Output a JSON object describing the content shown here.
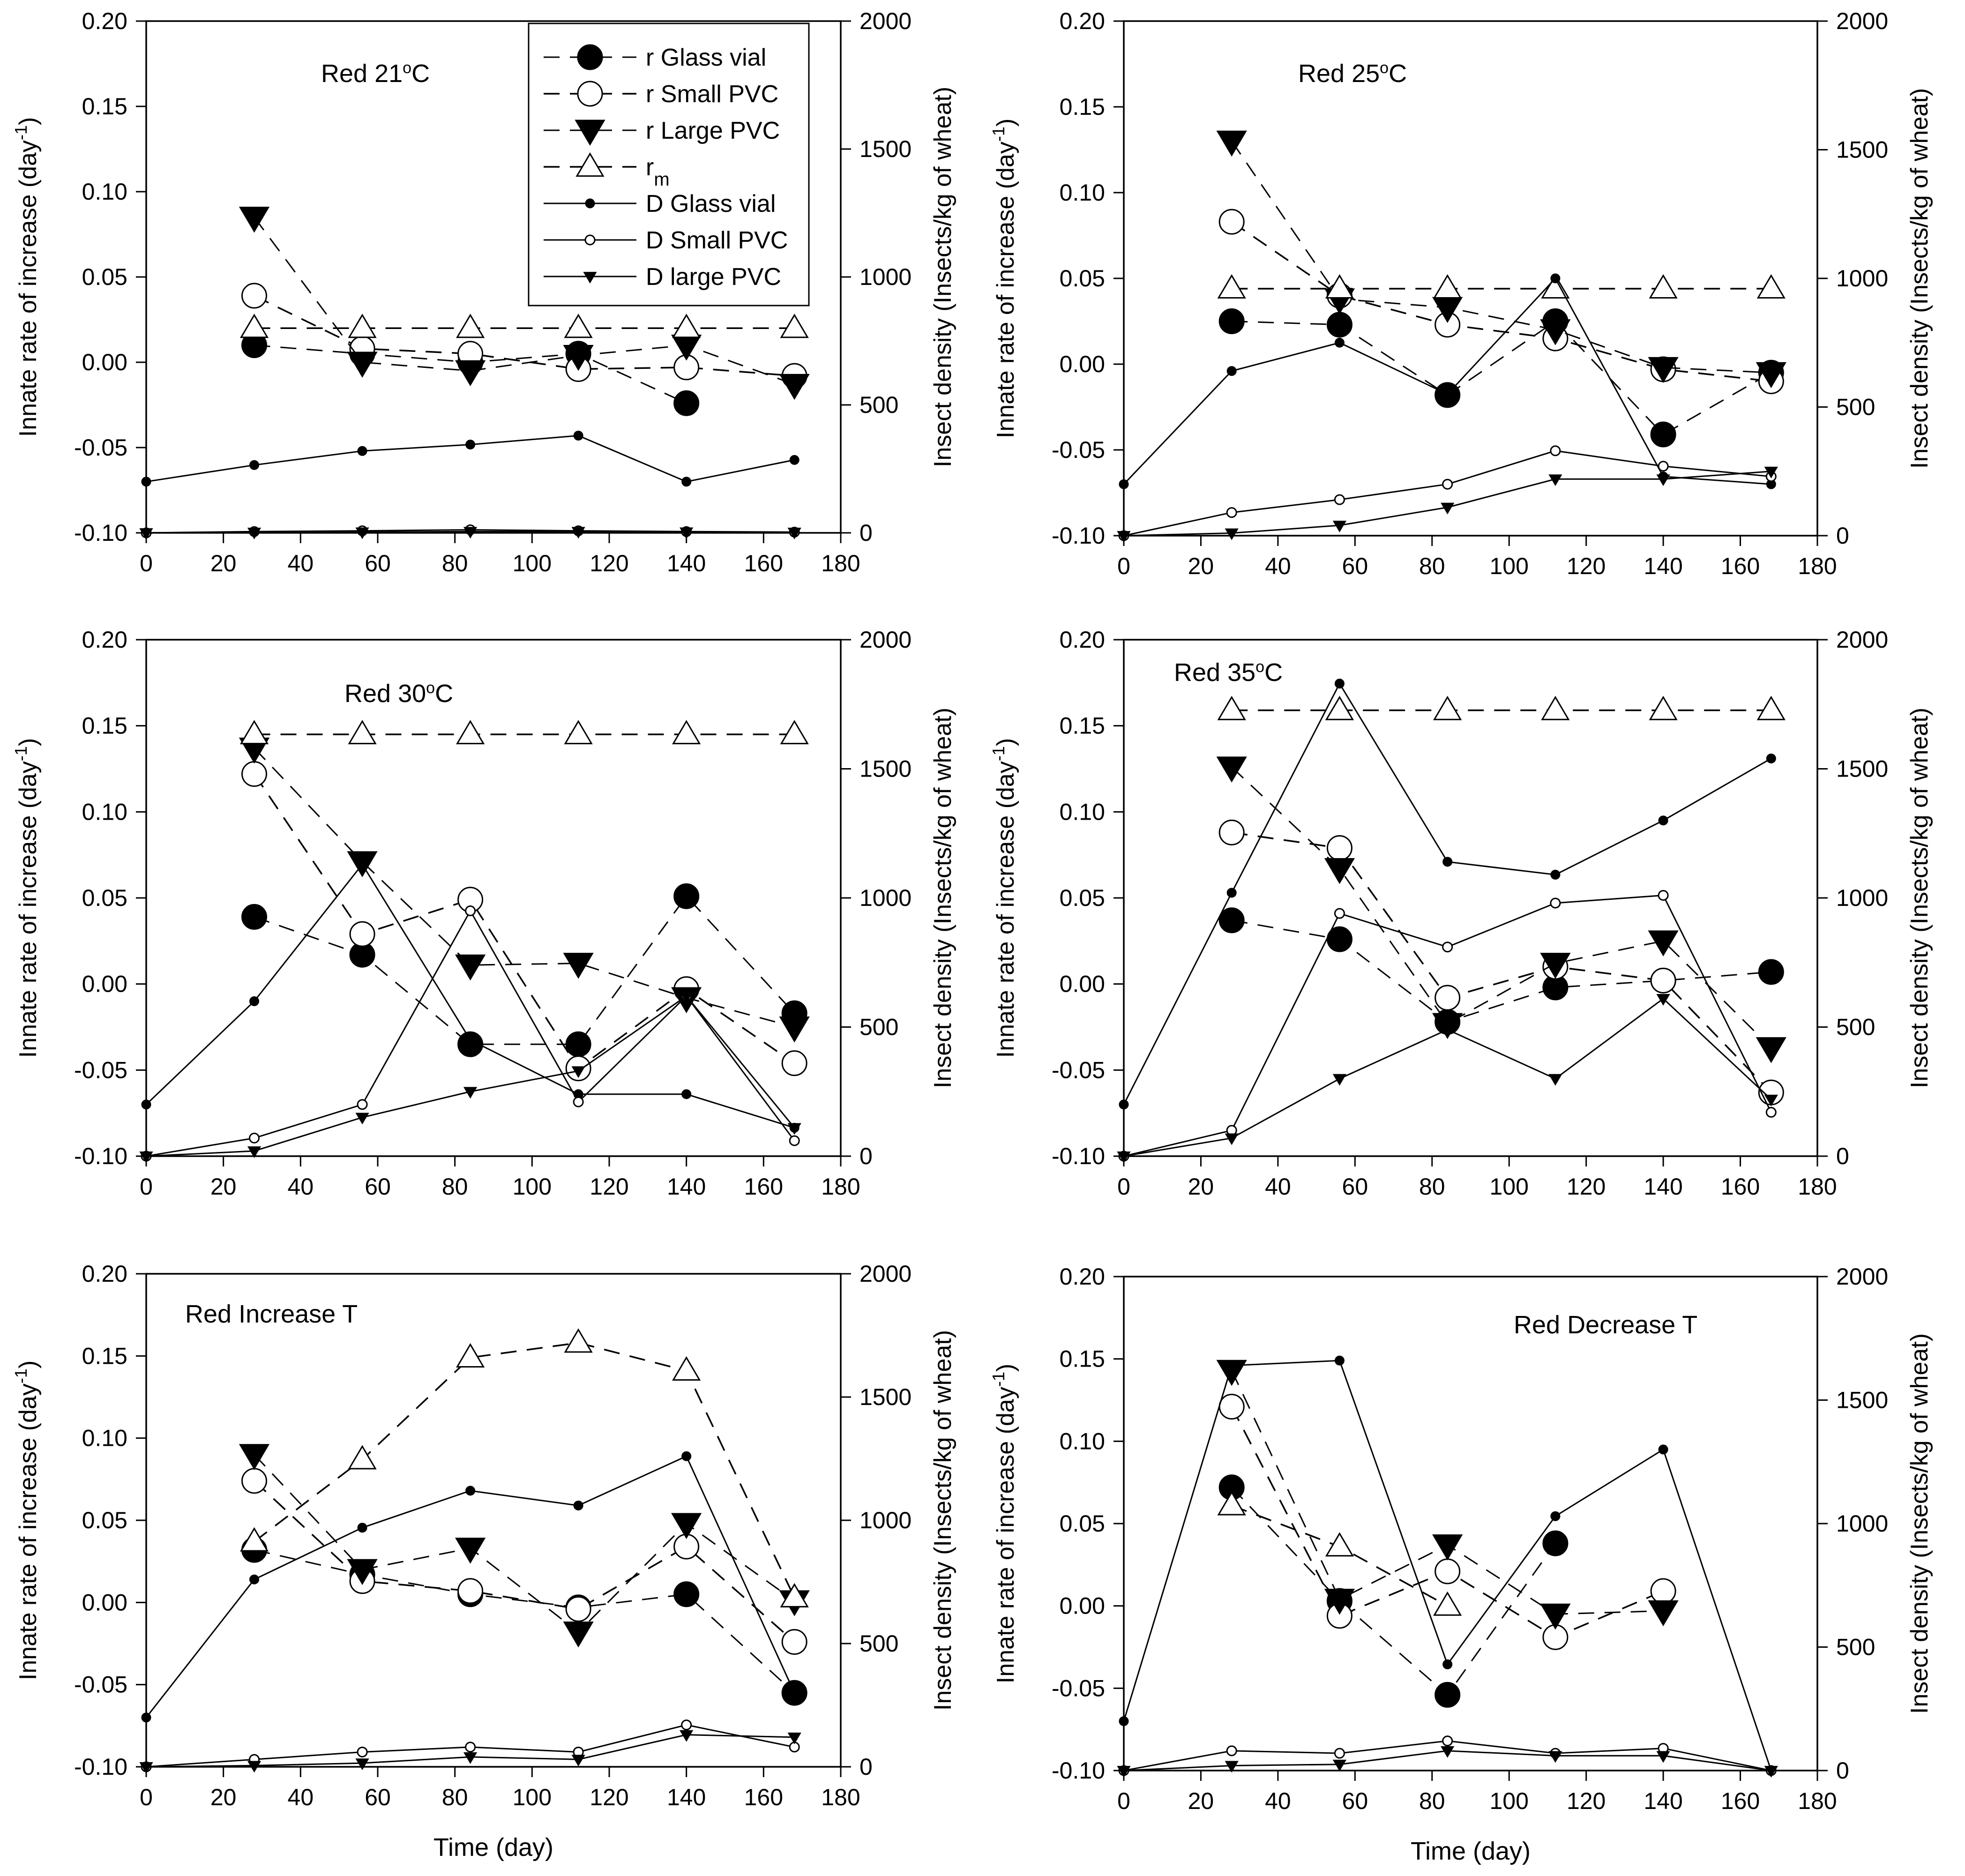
{
  "figure": {
    "x_axis_label": "Time (day)",
    "left_axis_label": "Innate rate of increase (day",
    "left_axis_sup": "-1",
    "left_axis_close": ")",
    "right_axis_label": "Insect density (Insects/kg of wheat)"
  },
  "legend": {
    "entries": [
      {
        "key": "rGlass",
        "label": "r Glass vial"
      },
      {
        "key": "rSmall",
        "label": "r Small PVC"
      },
      {
        "key": "rLarge",
        "label": "r Large PVC"
      },
      {
        "key": "rm",
        "label": "r",
        "sub": "m"
      },
      {
        "key": "dGlass",
        "label": "D Glass vial"
      },
      {
        "key": "dSmall",
        "label": "D Small PVC"
      },
      {
        "key": "dLarge",
        "label": "D large PVC"
      }
    ]
  },
  "chart_data": [
    {
      "type": "line",
      "title": "Red 21",
      "title_degree": "o",
      "title_unit": "C",
      "x": [
        0,
        28,
        56,
        84,
        112,
        140,
        168
      ],
      "xlim": [
        0,
        180
      ],
      "xticks": [
        0,
        20,
        40,
        60,
        80,
        100,
        120,
        140,
        160,
        180
      ],
      "ylim": [
        -0.1,
        0.2
      ],
      "yticks": [
        "-0.10",
        "-0.05",
        "0.00",
        "0.05",
        "0.10",
        "0.15",
        "0.20"
      ],
      "y2lim": [
        0,
        2000
      ],
      "y2ticks": [
        0,
        500,
        1000,
        1500,
        2000
      ],
      "series": [
        {
          "key": "rGlass",
          "axis": "left",
          "values": [
            null,
            0.01,
            0.005,
            0.0,
            0.005,
            -0.024,
            null
          ]
        },
        {
          "key": "rSmall",
          "axis": "left",
          "values": [
            null,
            0.039,
            0.008,
            0.005,
            -0.004,
            -0.003,
            -0.008
          ]
        },
        {
          "key": "rLarge",
          "axis": "left",
          "values": [
            null,
            0.085,
            0.0,
            -0.005,
            0.004,
            0.01,
            -0.013
          ]
        },
        {
          "key": "rm",
          "axis": "left",
          "values": [
            null,
            0.02,
            0.02,
            0.02,
            0.02,
            0.02,
            0.02
          ]
        },
        {
          "key": "dGlass",
          "axis": "right",
          "values": [
            200,
            265,
            320,
            345,
            380,
            200,
            285
          ]
        },
        {
          "key": "dSmall",
          "axis": "right",
          "values": [
            0,
            5,
            8,
            12,
            8,
            5,
            3
          ]
        },
        {
          "key": "dLarge",
          "axis": "right",
          "values": [
            0,
            2,
            3,
            5,
            5,
            3,
            2
          ]
        }
      ]
    },
    {
      "type": "line",
      "title": "Red 25",
      "title_degree": "o",
      "title_unit": "C",
      "x": [
        0,
        28,
        56,
        84,
        112,
        140,
        168
      ],
      "xlim": [
        0,
        180
      ],
      "xticks": [
        0,
        20,
        40,
        60,
        80,
        100,
        120,
        140,
        160,
        180
      ],
      "ylim": [
        -0.1,
        0.2
      ],
      "yticks": [
        "-0.10",
        "-0.05",
        "0.00",
        "0.05",
        "0.10",
        "0.15",
        "0.20"
      ],
      "y2lim": [
        0,
        2000
      ],
      "y2ticks": [
        0,
        500,
        1000,
        1500,
        2000
      ],
      "series": [
        {
          "key": "rGlass",
          "axis": "left",
          "values": [
            null,
            0.025,
            0.023,
            -0.018,
            0.025,
            -0.041,
            -0.005
          ]
        },
        {
          "key": "rSmall",
          "axis": "left",
          "values": [
            null,
            0.083,
            0.04,
            0.023,
            0.015,
            -0.003,
            -0.01
          ]
        },
        {
          "key": "rLarge",
          "axis": "left",
          "values": [
            null,
            0.13,
            0.038,
            0.033,
            0.02,
            -0.002,
            -0.005
          ]
        },
        {
          "key": "rm",
          "axis": "left",
          "values": [
            null,
            0.044,
            0.044,
            0.044,
            0.044,
            0.044,
            0.044
          ]
        },
        {
          "key": "dGlass",
          "axis": "right",
          "values": [
            200,
            640,
            750,
            550,
            1000,
            230,
            200
          ]
        },
        {
          "key": "dSmall",
          "axis": "right",
          "values": [
            0,
            90,
            140,
            200,
            330,
            270,
            230
          ]
        },
        {
          "key": "dLarge",
          "axis": "right",
          "values": [
            0,
            10,
            40,
            110,
            220,
            220,
            250
          ]
        }
      ]
    },
    {
      "type": "line",
      "title": "Red 30",
      "title_degree": "o",
      "title_unit": "C",
      "x": [
        0,
        28,
        56,
        84,
        112,
        140,
        168
      ],
      "xlim": [
        0,
        180
      ],
      "xticks": [
        0,
        20,
        40,
        60,
        80,
        100,
        120,
        140,
        160,
        180
      ],
      "ylim": [
        -0.1,
        0.2
      ],
      "yticks": [
        "-0.10",
        "-0.05",
        "0.00",
        "0.05",
        "0.10",
        "0.15",
        "0.20"
      ],
      "y2lim": [
        0,
        2000
      ],
      "y2ticks": [
        0,
        500,
        1000,
        1500,
        2000
      ],
      "series": [
        {
          "key": "rGlass",
          "axis": "left",
          "values": [
            null,
            0.039,
            0.017,
            -0.035,
            -0.035,
            0.051,
            -0.017
          ]
        },
        {
          "key": "rSmall",
          "axis": "left",
          "values": [
            null,
            0.122,
            0.029,
            0.049,
            -0.049,
            -0.003,
            -0.046
          ]
        },
        {
          "key": "rLarge",
          "axis": "left",
          "values": [
            null,
            0.137,
            0.071,
            0.011,
            0.012,
            -0.008,
            -0.025
          ]
        },
        {
          "key": "rm",
          "axis": "left",
          "values": [
            null,
            0.145,
            0.145,
            0.145,
            0.145,
            0.145,
            0.145
          ]
        },
        {
          "key": "dGlass",
          "axis": "right",
          "values": [
            200,
            600,
            1130,
            450,
            240,
            240,
            110
          ]
        },
        {
          "key": "dSmall",
          "axis": "right",
          "values": [
            0,
            70,
            200,
            950,
            210,
            620,
            60
          ]
        },
        {
          "key": "dLarge",
          "axis": "right",
          "values": [
            0,
            20,
            150,
            250,
            330,
            620,
            110
          ]
        }
      ]
    },
    {
      "type": "line",
      "title": "Red 35",
      "title_degree": "o",
      "title_unit": "C",
      "x": [
        0,
        28,
        56,
        84,
        112,
        140,
        168
      ],
      "xlim": [
        0,
        180
      ],
      "xticks": [
        0,
        20,
        40,
        60,
        80,
        100,
        120,
        140,
        160,
        180
      ],
      "ylim": [
        -0.1,
        0.2
      ],
      "yticks": [
        "-0.10",
        "-0.05",
        "0.00",
        "0.05",
        "0.10",
        "0.15",
        "0.20"
      ],
      "y2lim": [
        0,
        2000
      ],
      "y2ticks": [
        0,
        500,
        1000,
        1500,
        2000
      ],
      "series": [
        {
          "key": "rGlass",
          "axis": "left",
          "values": [
            null,
            0.037,
            0.026,
            -0.022,
            -0.002,
            0.002,
            0.007
          ]
        },
        {
          "key": "rSmall",
          "axis": "left",
          "values": [
            null,
            0.088,
            0.079,
            -0.008,
            0.01,
            0.002,
            -0.063
          ]
        },
        {
          "key": "rLarge",
          "axis": "left",
          "values": [
            null,
            0.126,
            0.067,
            -0.023,
            0.012,
            0.025,
            -0.037
          ]
        },
        {
          "key": "rm",
          "axis": "left",
          "values": [
            null,
            0.159,
            0.159,
            0.159,
            0.159,
            0.159,
            0.159
          ]
        },
        {
          "key": "dGlass",
          "axis": "right",
          "values": [
            200,
            1020,
            1830,
            1140,
            1090,
            1300,
            1540
          ]
        },
        {
          "key": "dSmall",
          "axis": "right",
          "values": [
            0,
            100,
            940,
            810,
            980,
            1010,
            170
          ]
        },
        {
          "key": "dLarge",
          "axis": "right",
          "values": [
            0,
            70,
            300,
            490,
            300,
            610,
            220
          ]
        }
      ]
    },
    {
      "type": "line",
      "title": "Red Increase T",
      "x": [
        0,
        28,
        56,
        84,
        112,
        140,
        168
      ],
      "xlim": [
        0,
        180
      ],
      "xticks": [
        0,
        20,
        40,
        60,
        80,
        100,
        120,
        140,
        160,
        180
      ],
      "ylim": [
        -0.1,
        0.2
      ],
      "yticks": [
        "-0.10",
        "-0.05",
        "0.00",
        "0.05",
        "0.10",
        "0.15",
        "0.20"
      ],
      "y2lim": [
        0,
        2000
      ],
      "y2ticks": [
        0,
        500,
        1000,
        1500,
        2000
      ],
      "series": [
        {
          "key": "rGlass",
          "axis": "left",
          "values": [
            null,
            0.032,
            0.017,
            0.005,
            -0.003,
            0.005,
            -0.055
          ]
        },
        {
          "key": "rSmall",
          "axis": "left",
          "values": [
            null,
            0.074,
            0.013,
            0.007,
            -0.004,
            0.034,
            -0.024
          ]
        },
        {
          "key": "rLarge",
          "axis": "left",
          "values": [
            null,
            0.09,
            0.02,
            0.033,
            -0.018,
            0.048,
            0.001
          ]
        },
        {
          "key": "rm",
          "axis": "left",
          "values": [
            null,
            0.037,
            0.087,
            0.149,
            0.158,
            0.141,
            0.003
          ]
        },
        {
          "key": "dGlass",
          "axis": "right",
          "values": [
            200,
            760,
            970,
            1120,
            1060,
            1260,
            300
          ]
        },
        {
          "key": "dSmall",
          "axis": "right",
          "values": [
            0,
            30,
            60,
            80,
            60,
            170,
            80
          ]
        },
        {
          "key": "dLarge",
          "axis": "right",
          "values": [
            0,
            5,
            15,
            40,
            30,
            130,
            120
          ]
        }
      ]
    },
    {
      "type": "line",
      "title": "Red Decrease T",
      "x": [
        0,
        28,
        56,
        84,
        112,
        140,
        168
      ],
      "xlim": [
        0,
        180
      ],
      "xticks": [
        0,
        20,
        40,
        60,
        80,
        100,
        120,
        140,
        160,
        180
      ],
      "ylim": [
        -0.1,
        0.2
      ],
      "yticks": [
        "-0.10",
        "-0.05",
        "0.00",
        "0.05",
        "0.10",
        "0.15",
        "0.20"
      ],
      "y2lim": [
        0,
        2000
      ],
      "y2ticks": [
        0,
        500,
        1000,
        1500,
        2000
      ],
      "series": [
        {
          "key": "rGlass",
          "axis": "left",
          "values": [
            null,
            0.072,
            0.003,
            -0.054,
            0.038,
            null,
            null
          ]
        },
        {
          "key": "rSmall",
          "axis": "left",
          "values": [
            null,
            0.121,
            -0.006,
            0.021,
            -0.019,
            0.009,
            null
          ]
        },
        {
          "key": "rLarge",
          "axis": "left",
          "values": [
            null,
            0.143,
            0.004,
            0.037,
            -0.005,
            -0.003,
            null
          ]
        },
        {
          "key": "rm",
          "axis": "left",
          "values": [
            null,
            0.061,
            0.036,
            0.0,
            null,
            null,
            null
          ]
        },
        {
          "key": "dGlass",
          "axis": "right",
          "values": [
            200,
            1640,
            1660,
            430,
            1030,
            1300,
            0
          ]
        },
        {
          "key": "dSmall",
          "axis": "right",
          "values": [
            0,
            80,
            70,
            120,
            70,
            90,
            0
          ]
        },
        {
          "key": "dLarge",
          "axis": "right",
          "values": [
            0,
            20,
            25,
            80,
            60,
            60,
            0
          ]
        }
      ]
    }
  ]
}
